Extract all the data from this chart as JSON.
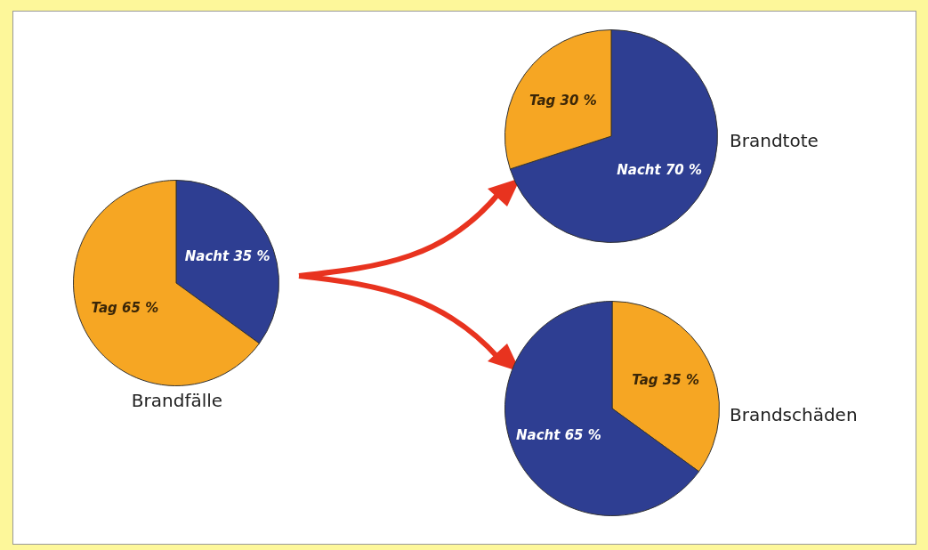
{
  "chart_data": [
    {
      "type": "pie",
      "title": "Brandfälle",
      "categories": [
        "Nacht",
        "Tag"
      ],
      "values": [
        35,
        65
      ],
      "colors": [
        "#2e3e92",
        "#f6a623"
      ],
      "value_labels": [
        "35 %",
        "65 %"
      ],
      "legend": false
    },
    {
      "type": "pie",
      "title": "Brandtote",
      "categories": [
        "Nacht",
        "Tag"
      ],
      "values": [
        70,
        30
      ],
      "colors": [
        "#2e3e92",
        "#f6a623"
      ],
      "value_labels": [
        "70 %",
        "30 %"
      ],
      "legend": false
    },
    {
      "type": "pie",
      "title": "Brandschäden",
      "categories": [
        "Tag",
        "Nacht"
      ],
      "values": [
        35,
        65
      ],
      "colors": [
        "#f6a623",
        "#2e3e92"
      ],
      "value_labels": [
        "35 %",
        "65 %"
      ],
      "legend": false
    }
  ]
}
